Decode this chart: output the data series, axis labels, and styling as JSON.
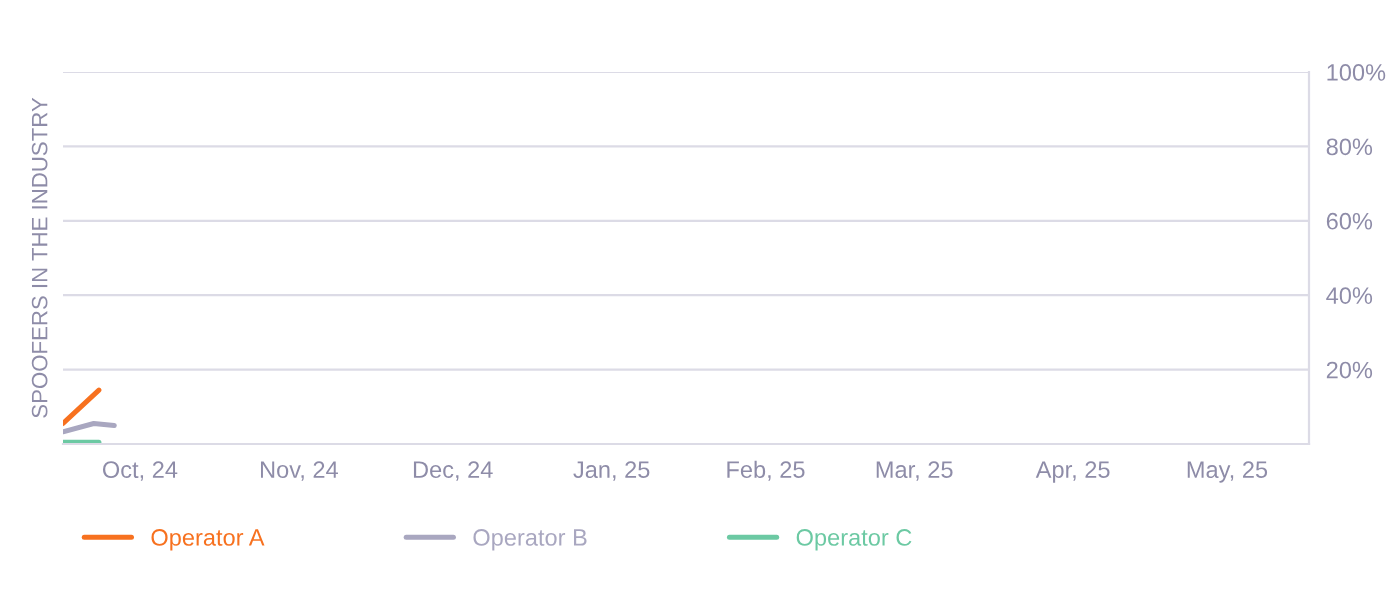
{
  "chart_data": {
    "type": "line",
    "ylabel": "SPOOFERS IN THE INDUSTRY",
    "xlim": [
      "2024-10-01",
      "2025-06-01"
    ],
    "xticks": [
      {
        "value": "2024-10-16",
        "label": "Oct, 24"
      },
      {
        "value": "2024-11-16",
        "label": "Nov, 24"
      },
      {
        "value": "2024-12-16",
        "label": "Dec, 24"
      },
      {
        "value": "2025-01-16",
        "label": "Jan, 25"
      },
      {
        "value": "2025-02-15",
        "label": "Feb, 25"
      },
      {
        "value": "2025-03-16",
        "label": "Mar, 25"
      },
      {
        "value": "2025-04-16",
        "label": "Apr, 25"
      },
      {
        "value": "2025-05-16",
        "label": "May, 25"
      }
    ],
    "ylim": [
      0,
      100
    ],
    "yticks": [
      {
        "value": 0,
        "label": null
      },
      {
        "value": 20,
        "label": "20%"
      },
      {
        "value": 40,
        "label": "40%"
      },
      {
        "value": 60,
        "label": "60%"
      },
      {
        "value": 80,
        "label": "80%"
      },
      {
        "value": 100,
        "label": "100%"
      }
    ],
    "grid": "y",
    "legend": "bottom",
    "marker": "none",
    "line_style": "solid",
    "series": [
      {
        "name": "Operator A",
        "color": "#f7711f",
        "x": [
          "2024-10-01",
          "2024-10-08"
        ],
        "values": [
          5.5,
          14.5
        ]
      },
      {
        "name": "Operator B",
        "color": "#a9a7c0",
        "x": [
          "2024-10-01",
          "2024-10-07",
          "2024-10-11"
        ],
        "values": [
          3.3,
          5.5,
          5
        ]
      },
      {
        "name": "Operator C",
        "color": "#6cc9a3",
        "x": [
          "2024-10-01",
          "2024-10-08"
        ],
        "values": [
          0.5,
          0.5
        ]
      }
    ]
  }
}
